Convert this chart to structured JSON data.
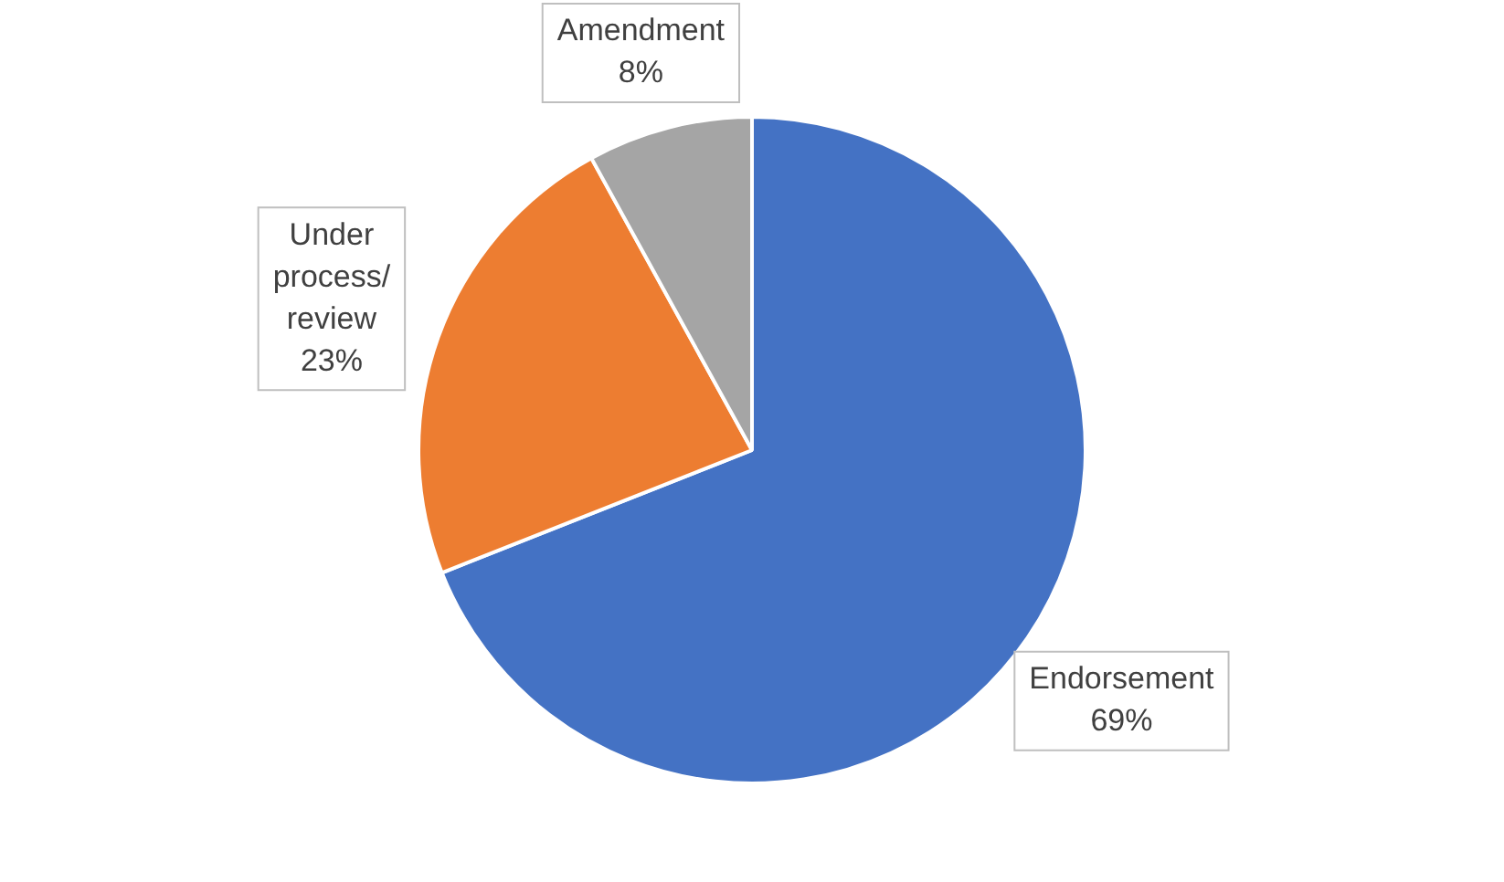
{
  "chart_data": {
    "type": "pie",
    "categories": [
      "Endorsement",
      "Under process/review",
      "Amendment"
    ],
    "values": [
      69,
      23,
      8
    ],
    "colors": [
      "#4472c4",
      "#ed7d31",
      "#a5a5a5"
    ],
    "value_labels": [
      "69%",
      "23%",
      "8%"
    ],
    "legend": false
  }
}
